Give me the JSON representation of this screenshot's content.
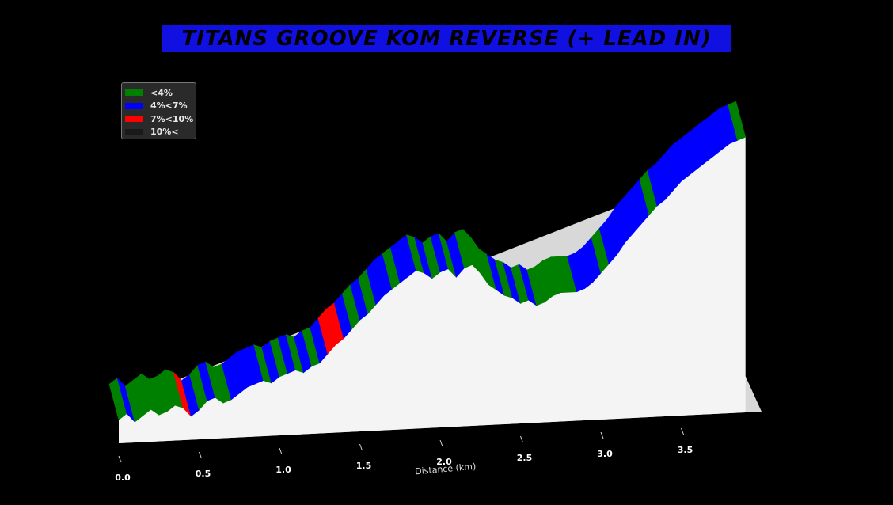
{
  "title": "TITANS GROOVE KOM REVERSE (+ LEAD IN)",
  "chart_data": {
    "type": "area",
    "title": "TITANS GROOVE KOM REVERSE (+ LEAD IN)",
    "xlabel": "Distance (km)",
    "ylabel": "",
    "xlim": [
      0,
      4.0
    ],
    "x_ticks": [
      0.0,
      0.5,
      1.0,
      1.5,
      2.0,
      2.5,
      3.0,
      3.5
    ],
    "x_tick_labels": [
      "0.0",
      "0.5",
      "1.0",
      "1.5",
      "2.0",
      "2.5",
      "3.0",
      "3.5"
    ],
    "style": "3d-ribbon",
    "grid": false,
    "legend_position": "top-left",
    "legend": [
      {
        "label": "<4%",
        "color": "#008000"
      },
      {
        "label": "4%<7%",
        "color": "#0000ff"
      },
      {
        "label": "7%<10%",
        "color": "#ff0000"
      },
      {
        "label": "10%<",
        "color": "#1a1a1a"
      }
    ],
    "elevation_profile": {
      "x": [
        0.0,
        0.05,
        0.1,
        0.15,
        0.2,
        0.25,
        0.3,
        0.35,
        0.4,
        0.45,
        0.5,
        0.55,
        0.6,
        0.65,
        0.7,
        0.75,
        0.8,
        0.85,
        0.9,
        0.95,
        1.0,
        1.05,
        1.1,
        1.15,
        1.2,
        1.25,
        1.3,
        1.35,
        1.4,
        1.45,
        1.5,
        1.55,
        1.6,
        1.65,
        1.7,
        1.75,
        1.8,
        1.85,
        1.9,
        1.95,
        2.0,
        2.05,
        2.1,
        2.15,
        2.2,
        2.25,
        2.3,
        2.35,
        2.4,
        2.45,
        2.5,
        2.55,
        2.6,
        2.65,
        2.7,
        2.75,
        2.8,
        2.85,
        2.9,
        2.95,
        3.0,
        3.05,
        3.1,
        3.15,
        3.2,
        3.25,
        3.3,
        3.35,
        3.4,
        3.45,
        3.5,
        3.55,
        3.6,
        3.65,
        3.7,
        3.75,
        3.8,
        3.85,
        3.9
      ],
      "elevation": [
        8,
        10,
        7,
        9,
        11,
        9,
        10,
        12,
        11,
        8,
        10,
        13,
        14,
        12,
        13,
        15,
        17,
        18,
        19,
        18,
        20,
        21,
        22,
        21,
        23,
        24,
        27,
        30,
        32,
        35,
        38,
        40,
        43,
        46,
        48,
        50,
        52,
        54,
        53,
        51,
        53,
        54,
        51,
        54,
        55,
        52,
        48,
        46,
        44,
        43,
        41,
        42,
        40,
        41,
        43,
        44,
        44,
        44,
        45,
        47,
        50,
        53,
        56,
        60,
        63,
        66,
        69,
        72,
        74,
        77,
        80,
        82,
        84,
        86,
        88,
        90,
        92,
        93,
        94
      ],
      "gradient_class": [
        "<4%",
        "4%<7%",
        "<4%",
        "<4%",
        "<4%",
        "<4%",
        "<4%",
        "<4%",
        "7%<10%",
        "4%<7%",
        "<4%",
        "4%<7%",
        "<4%",
        "<4%",
        "4%<7%",
        "4%<7%",
        "4%<7%",
        "4%<7%",
        "<4%",
        "4%<7%",
        "<4%",
        "4%<7%",
        "<4%",
        "4%<7%",
        "<4%",
        "4%<7%",
        "7%<10%",
        "7%<10%",
        "4%<7%",
        "<4%",
        "4%<7%",
        "<4%",
        "4%<7%",
        "4%<7%",
        "<4%",
        "4%<7%",
        "4%<7%",
        "<4%",
        "4%<7%",
        "<4%",
        "4%<7%",
        "<4%",
        "4%<7%",
        "<4%",
        "<4%",
        "<4%",
        "<4%",
        "4%<7%",
        "<4%",
        "4%<7%",
        "<4%",
        "4%<7%",
        "<4%",
        "<4%",
        "<4%",
        "<4%",
        "<4%",
        "4%<7%",
        "4%<7%",
        "4%<7%",
        "<4%",
        "4%<7%",
        "4%<7%",
        "4%<7%",
        "4%<7%",
        "4%<7%",
        "<4%",
        "4%<7%",
        "4%<7%",
        "4%<7%",
        "4%<7%",
        "4%<7%",
        "4%<7%",
        "4%<7%",
        "4%<7%",
        "4%<7%",
        "4%<7%",
        "<4%",
        "<4%"
      ]
    }
  }
}
